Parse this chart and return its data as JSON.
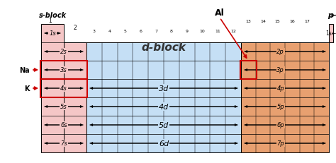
{
  "fig_width": 4.74,
  "fig_height": 2.32,
  "dpi": 100,
  "bg_color": "#ffffff",
  "s_block_color": "#f5c6c6",
  "s_block_label": "s-block",
  "d_block_color": "#c5dff5",
  "d_block_label": "d-block",
  "p_block_color": "#e8a070",
  "p_block_label": "p-block",
  "he_color": "#f5c6c6",
  "na_label": "Na",
  "k_label": "K",
  "al_label": "Al",
  "red_color": "#cc0000"
}
